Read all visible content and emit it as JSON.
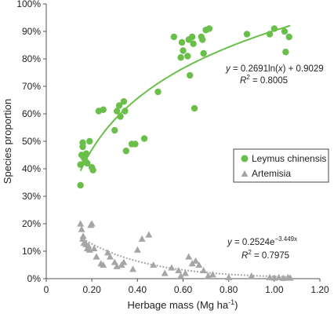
{
  "chart_data": {
    "type": "scatter",
    "xlabel": "Herbage mass (Mg ha",
    "xlabel_sup": "-1",
    "xlabel_end": ")",
    "ylabel": "Species proportion",
    "xlim": [
      0,
      1.2
    ],
    "ylim": [
      0,
      100
    ],
    "x_ticks": [
      "0",
      "0.20",
      "0.40",
      "0.60",
      "0.80",
      "1.00",
      "1.20"
    ],
    "y_ticks": [
      "0%",
      "10%",
      "20%",
      "30%",
      "40%",
      "50%",
      "60%",
      "70%",
      "80%",
      "90%",
      "100%"
    ],
    "legend_position": "right-middle",
    "series": [
      {
        "name": "Leymus chinensis",
        "color": "#6abf4b",
        "marker": "circle",
        "trend": {
          "kind": "log",
          "a": 0.2691,
          "b": 0.9029,
          "x_from": 0.15,
          "x_to": 1.07,
          "style": "solid"
        },
        "equation": {
          "lhs": "y",
          "rhs": " = 0.2691ln(",
          "x": "x",
          "rhs_end": ") + 0.9029",
          "r2": "R",
          "r2_sup": "2",
          "r2_val": " = 0.8005"
        },
        "points": [
          [
            0.15,
            34
          ],
          [
            0.15,
            41.5
          ],
          [
            0.155,
            45
          ],
          [
            0.16,
            49.5
          ],
          [
            0.16,
            48
          ],
          [
            0.165,
            44
          ],
          [
            0.17,
            43
          ],
          [
            0.175,
            45.5
          ],
          [
            0.18,
            42
          ],
          [
            0.19,
            50
          ],
          [
            0.2,
            40.5
          ],
          [
            0.205,
            39.5
          ],
          [
            0.23,
            61
          ],
          [
            0.25,
            61.5
          ],
          [
            0.3,
            54
          ],
          [
            0.31,
            61
          ],
          [
            0.32,
            63
          ],
          [
            0.325,
            59
          ],
          [
            0.34,
            64.5
          ],
          [
            0.345,
            61
          ],
          [
            0.35,
            46.5
          ],
          [
            0.375,
            49
          ],
          [
            0.39,
            49
          ],
          [
            0.43,
            51
          ],
          [
            0.49,
            68
          ],
          [
            0.56,
            88
          ],
          [
            0.59,
            80.5
          ],
          [
            0.595,
            86
          ],
          [
            0.6,
            83
          ],
          [
            0.62,
            81
          ],
          [
            0.625,
            87
          ],
          [
            0.63,
            74
          ],
          [
            0.64,
            88
          ],
          [
            0.645,
            85.5
          ],
          [
            0.65,
            62
          ],
          [
            0.68,
            88
          ],
          [
            0.685,
            87
          ],
          [
            0.69,
            82
          ],
          [
            0.7,
            90.5
          ],
          [
            0.715,
            91
          ],
          [
            0.88,
            89
          ],
          [
            0.98,
            89
          ],
          [
            1.0,
            91
          ],
          [
            1.045,
            90
          ],
          [
            1.05,
            82.5
          ],
          [
            1.065,
            88
          ]
        ]
      },
      {
        "name": "Artemisia",
        "color": "#a6a6a6",
        "marker": "triangle",
        "trend": {
          "kind": "exp",
          "a": 0.2524,
          "k": -3.449,
          "x_from": 0.15,
          "x_to": 1.07,
          "style": "dotted"
        },
        "equation": {
          "lhs": "y",
          "rhs": " = 0.2524e",
          "exp_sup": "−3.449x",
          "r2": "R",
          "r2_sup": "2",
          "r2_val": " = 0.7975"
        },
        "points": [
          [
            0.15,
            20
          ],
          [
            0.155,
            18
          ],
          [
            0.16,
            14.5
          ],
          [
            0.162,
            15.5
          ],
          [
            0.165,
            13
          ],
          [
            0.17,
            13
          ],
          [
            0.175,
            12.5
          ],
          [
            0.18,
            11
          ],
          [
            0.185,
            12
          ],
          [
            0.19,
            10.5
          ],
          [
            0.195,
            19.5
          ],
          [
            0.2,
            20
          ],
          [
            0.21,
            11
          ],
          [
            0.22,
            8
          ],
          [
            0.24,
            5.5
          ],
          [
            0.25,
            5
          ],
          [
            0.27,
            9.5
          ],
          [
            0.28,
            8
          ],
          [
            0.3,
            6
          ],
          [
            0.31,
            4.5
          ],
          [
            0.33,
            5
          ],
          [
            0.34,
            6
          ],
          [
            0.38,
            3.5
          ],
          [
            0.4,
            10.5
          ],
          [
            0.42,
            14.5
          ],
          [
            0.45,
            16
          ],
          [
            0.47,
            5
          ],
          [
            0.52,
            2
          ],
          [
            0.55,
            4
          ],
          [
            0.58,
            3
          ],
          [
            0.59,
            1
          ],
          [
            0.61,
            2
          ],
          [
            0.625,
            8
          ],
          [
            0.64,
            5.5
          ],
          [
            0.655,
            6.5
          ],
          [
            0.67,
            5
          ],
          [
            0.69,
            3
          ],
          [
            0.71,
            1
          ],
          [
            0.73,
            1.5
          ],
          [
            0.8,
            0.5
          ],
          [
            0.9,
            1
          ],
          [
            0.98,
            0.5
          ],
          [
            1.0,
            0.3
          ],
          [
            1.02,
            0.5
          ],
          [
            1.04,
            0.2
          ],
          [
            1.06,
            0.5
          ],
          [
            1.07,
            0.3
          ]
        ]
      }
    ]
  }
}
